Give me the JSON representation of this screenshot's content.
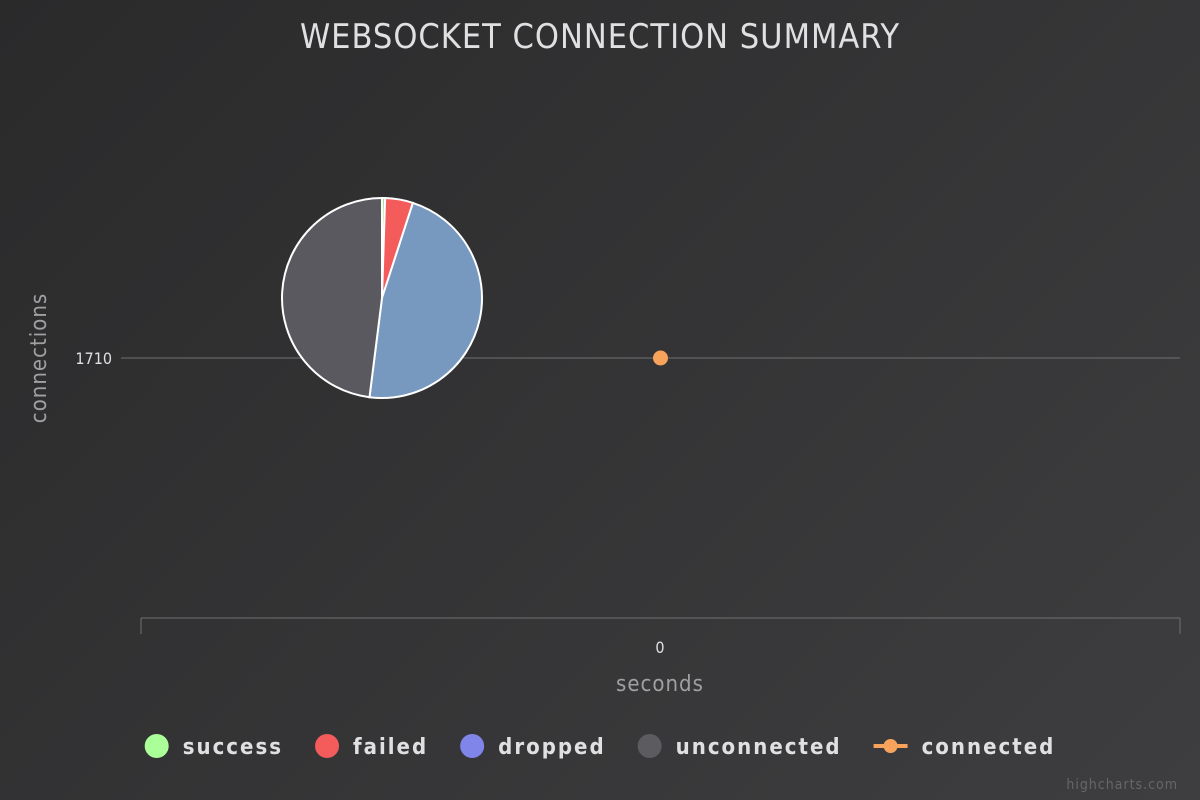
{
  "chart_data": {
    "type": "line+pie",
    "title": "WEBSOCKET CONNECTION SUMMARY",
    "xlabel": "seconds",
    "ylabel": "connections",
    "x_ticks": [
      "0"
    ],
    "y_ticks": [
      "1710"
    ],
    "line_series": [
      {
        "name": "connected",
        "color": "#f7a35c",
        "x": [
          0
        ],
        "y": [
          1710
        ]
      }
    ],
    "pie": {
      "slices": [
        {
          "name": "success",
          "value": 0.5,
          "color": "#90ee7e"
        },
        {
          "name": "failed",
          "value": 4.5,
          "color": "#f45b5b"
        },
        {
          "name": "dropped",
          "value": 47,
          "color": "#7798bf"
        },
        {
          "name": "unconnected",
          "value": 48,
          "color": "#59595f"
        }
      ]
    },
    "legend": {
      "placement": "bottom-center",
      "items": [
        {
          "name": "success",
          "color": "#aaff99",
          "marker": "circle"
        },
        {
          "name": "failed",
          "color": "#f45b5b",
          "marker": "circle"
        },
        {
          "name": "dropped",
          "color": "#8085e9",
          "marker": "circle"
        },
        {
          "name": "unconnected",
          "color": "#5b5b60",
          "marker": "circle"
        },
        {
          "name": "connected",
          "color": "#f7a35c",
          "marker": "line-circle"
        }
      ]
    },
    "credits": "highcharts.com"
  }
}
